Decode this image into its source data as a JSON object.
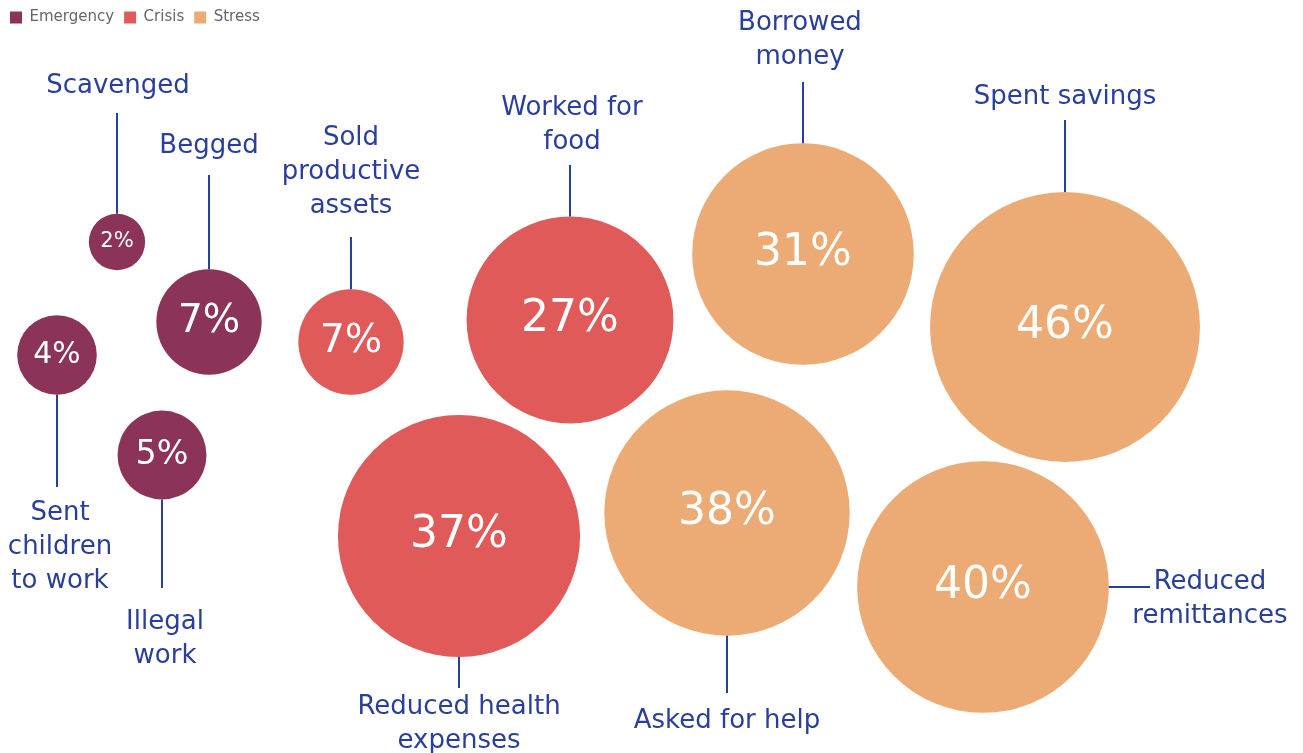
{
  "chart_data": {
    "type": "other",
    "legend": "top left",
    "categories": [
      "Scavenged",
      "Begged",
      "Sent children to work",
      "Illegal work",
      "Sold productive assets",
      "Worked for food",
      "Reduced health expenses",
      "Borrowed money",
      "Asked for help",
      "Spent savings",
      "Reduced remittances"
    ],
    "series": [
      {
        "name": "Emergency",
        "color": "#8b3358",
        "values": [
          2,
          7,
          4,
          5,
          null,
          null,
          null,
          null,
          null,
          null,
          null
        ],
        "value_labels": [
          "2%",
          "7%",
          "4%",
          "5%",
          null,
          null,
          null,
          null,
          null,
          null,
          null
        ]
      },
      {
        "name": "Crisis",
        "color": "#e05a5a",
        "values": [
          null,
          null,
          null,
          null,
          7,
          27,
          37,
          null,
          null,
          null,
          null
        ],
        "value_labels": [
          null,
          null,
          null,
          null,
          "7%",
          "27%",
          "37%",
          null,
          null,
          null,
          null
        ]
      },
      {
        "name": "Stress",
        "color": "#ecab74",
        "values": [
          null,
          null,
          null,
          null,
          null,
          null,
          null,
          31,
          38,
          46,
          40
        ],
        "value_labels": [
          null,
          null,
          null,
          null,
          null,
          null,
          null,
          "31%",
          "38%",
          "46%",
          "40%"
        ]
      }
    ]
  }
}
